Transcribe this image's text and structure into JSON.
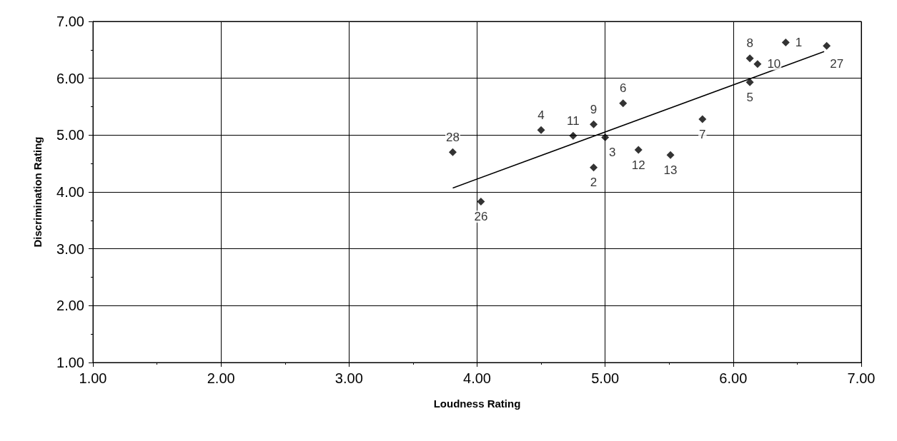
{
  "chart_data": {
    "type": "scatter",
    "xlabel": "Loudness Rating",
    "ylabel": "Discrimination Rating",
    "xlim": [
      1,
      7
    ],
    "xticks": [
      {
        "value": 1,
        "label": "1.00"
      },
      {
        "value": 2,
        "label": "2.00"
      },
      {
        "value": 3,
        "label": "3.00"
      },
      {
        "value": 4,
        "label": "4.00"
      },
      {
        "value": 5,
        "label": "5.00"
      },
      {
        "value": 6,
        "label": "6.00"
      },
      {
        "value": 7,
        "label": "7.00"
      }
    ],
    "ylim": [
      1,
      7
    ],
    "yticks": [
      {
        "value": 1,
        "label": "1.00"
      },
      {
        "value": 2,
        "label": "2.00"
      },
      {
        "value": 3,
        "label": "3.00"
      },
      {
        "value": 4,
        "label": "4.00"
      },
      {
        "value": 5,
        "label": "5.00"
      },
      {
        "value": 6,
        "label": "6.00"
      },
      {
        "value": 7,
        "label": "7.00"
      }
    ],
    "grid": true,
    "marker": "diamond",
    "series": [
      {
        "color": "#000000",
        "x": [
          6.41,
          4.91,
          5.0,
          4.5,
          6.13,
          5.14,
          5.76,
          6.13,
          4.91,
          6.19,
          4.75,
          5.26,
          5.51,
          4.03,
          6.73,
          3.81
        ],
        "values": [
          6.63,
          4.43,
          4.96,
          5.09,
          5.93,
          5.56,
          5.28,
          6.35,
          5.19,
          6.25,
          4.99,
          4.74,
          4.65,
          3.83,
          6.57,
          4.7
        ]
      },
      {
        "type": "line",
        "color": "#000000",
        "marker": "none",
        "x": [
          3.81,
          6.71
        ],
        "values": [
          4.07,
          6.47
        ]
      }
    ],
    "annotations": [
      {
        "text": "1",
        "x": 6.41,
        "y": 6.63
      },
      {
        "text": "2",
        "x": 4.91,
        "y": 4.43
      },
      {
        "text": "3",
        "x": 5.0,
        "y": 4.96
      },
      {
        "text": "4",
        "x": 4.5,
        "y": 5.09
      },
      {
        "text": "5",
        "x": 6.13,
        "y": 5.93
      },
      {
        "text": "6",
        "x": 5.14,
        "y": 5.56
      },
      {
        "text": "7",
        "x": 5.76,
        "y": 5.28
      },
      {
        "text": "8",
        "x": 6.13,
        "y": 6.35
      },
      {
        "text": "9",
        "x": 4.91,
        "y": 5.19
      },
      {
        "text": "10",
        "x": 6.19,
        "y": 6.25
      },
      {
        "text": "11",
        "x": 4.75,
        "y": 4.99
      },
      {
        "text": "12",
        "x": 5.26,
        "y": 4.74
      },
      {
        "text": "13",
        "x": 5.51,
        "y": 4.65
      },
      {
        "text": "26",
        "x": 4.03,
        "y": 3.83
      },
      {
        "text": "27",
        "x": 6.73,
        "y": 6.57
      },
      {
        "text": "28",
        "x": 3.81,
        "y": 4.7
      }
    ]
  }
}
